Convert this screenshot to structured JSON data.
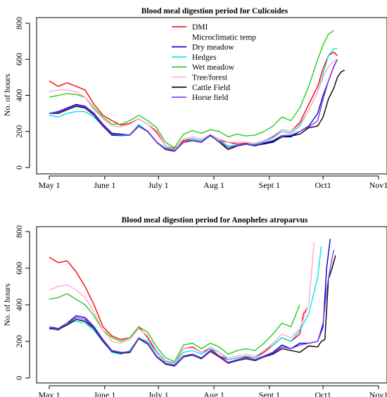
{
  "chart_data": [
    {
      "type": "line",
      "title": "Blood meal digestion period for Culicoides",
      "xlabel": "",
      "ylabel": "No. of hours",
      "x_tick_labels": [
        "May 1",
        "June 1",
        "July 1",
        "Aug 1",
        "Sept 1",
        "Oct1",
        "Nov1"
      ],
      "x_tick_days": [
        0,
        31,
        61,
        92,
        123,
        153,
        184
      ],
      "xlim_days": [
        0,
        184
      ],
      "y_ticks": [
        0,
        200,
        400,
        600,
        800
      ],
      "ylim": [
        0,
        800
      ],
      "grid": false,
      "legend_position": "top-center",
      "series": [
        {
          "name": "DMI",
          "color": "#ff0000",
          "x": [
            0,
            5,
            10,
            15,
            20,
            25,
            30,
            35,
            40,
            45,
            50,
            55,
            60,
            65,
            70,
            75,
            80,
            85,
            90,
            95,
            100,
            105,
            110,
            115,
            120,
            125,
            130,
            135,
            140,
            145,
            150,
            153,
            156,
            159,
            161
          ],
          "y": [
            480,
            450,
            470,
            450,
            430,
            350,
            290,
            260,
            235,
            245,
            270,
            240,
            200,
            120,
            105,
            150,
            160,
            150,
            175,
            150,
            140,
            130,
            135,
            125,
            150,
            170,
            210,
            200,
            250,
            350,
            450,
            550,
            620,
            640,
            620
          ]
        },
        {
          "name": "Microclimatic temp",
          "color": "#ffffff",
          "x": [],
          "y": []
        },
        {
          "name": "Dry meadow",
          "color": "#0000cc",
          "x": [
            0,
            5,
            10,
            15,
            20,
            25,
            30,
            35,
            40,
            45,
            50,
            55,
            60,
            65,
            70,
            75,
            80,
            85,
            90,
            95,
            100,
            105,
            110,
            115,
            120,
            125,
            130,
            135,
            140,
            145,
            150,
            153,
            156,
            159,
            161
          ],
          "y": [
            300,
            310,
            330,
            350,
            340,
            300,
            240,
            190,
            185,
            180,
            230,
            200,
            140,
            105,
            95,
            140,
            150,
            140,
            180,
            145,
            110,
            120,
            130,
            125,
            130,
            140,
            170,
            170,
            200,
            230,
            300,
            400,
            480,
            560,
            600
          ]
        },
        {
          "name": "Hedges",
          "color": "#00e5ee",
          "x": [
            0,
            5,
            10,
            15,
            20,
            25,
            30,
            35,
            40,
            45,
            50,
            55,
            60,
            65,
            70,
            75,
            80,
            85,
            90,
            95,
            100,
            105,
            110,
            115,
            120,
            125,
            130,
            135,
            140,
            145,
            150,
            153,
            156,
            159,
            161
          ],
          "y": [
            290,
            280,
            300,
            310,
            310,
            280,
            230,
            180,
            175,
            180,
            240,
            200,
            140,
            110,
            100,
            140,
            160,
            150,
            175,
            150,
            120,
            125,
            130,
            130,
            145,
            165,
            200,
            190,
            230,
            320,
            420,
            520,
            620,
            660,
            660
          ]
        },
        {
          "name": "Wet meadow",
          "color": "#22cc22",
          "x": [
            0,
            5,
            10,
            15,
            20,
            25,
            30,
            35,
            40,
            45,
            50,
            55,
            60,
            65,
            70,
            75,
            80,
            85,
            90,
            95,
            100,
            105,
            110,
            115,
            120,
            125,
            130,
            135,
            140,
            145,
            150,
            153,
            156,
            159
          ],
          "y": [
            390,
            400,
            410,
            405,
            390,
            330,
            280,
            240,
            240,
            260,
            290,
            260,
            220,
            140,
            110,
            185,
            205,
            190,
            210,
            200,
            170,
            185,
            175,
            180,
            200,
            230,
            280,
            260,
            330,
            450,
            600,
            680,
            740,
            760
          ]
        },
        {
          "name": "Tree/forest",
          "color": "#ffaacc",
          "x": [
            0,
            5,
            10,
            15,
            20,
            25,
            30,
            35,
            40,
            45,
            50,
            55,
            60,
            65,
            70,
            75,
            80,
            85,
            90,
            95,
            100,
            105,
            110,
            115,
            120,
            125,
            130,
            135,
            140,
            145,
            150,
            153,
            156,
            159,
            161
          ],
          "y": [
            420,
            430,
            430,
            420,
            390,
            320,
            270,
            230,
            225,
            240,
            270,
            240,
            190,
            120,
            100,
            160,
            170,
            160,
            180,
            160,
            140,
            140,
            140,
            135,
            150,
            175,
            210,
            200,
            240,
            320,
            420,
            500,
            560,
            590,
            600
          ]
        },
        {
          "name": "Cattle Field",
          "color": "#000000",
          "x": [
            0,
            5,
            10,
            15,
            20,
            25,
            30,
            35,
            40,
            45,
            50,
            55,
            60,
            65,
            70,
            75,
            80,
            85,
            90,
            95,
            100,
            105,
            110,
            115,
            120,
            125,
            130,
            135,
            140,
            145,
            150,
            153,
            156,
            159,
            161,
            163,
            165
          ],
          "y": [
            300,
            300,
            320,
            340,
            330,
            290,
            230,
            180,
            180,
            180,
            230,
            200,
            140,
            100,
            90,
            140,
            150,
            140,
            180,
            140,
            100,
            120,
            130,
            120,
            135,
            145,
            170,
            175,
            185,
            220,
            230,
            280,
            380,
            440,
            500,
            530,
            540
          ]
        },
        {
          "name": "Horse field",
          "color": "#8833ee",
          "x": [
            0,
            5,
            10,
            15,
            20,
            25,
            30,
            35,
            40,
            45,
            50,
            55,
            60,
            65,
            70,
            75,
            80,
            85,
            90,
            95,
            100,
            105,
            110,
            115,
            120,
            125,
            130,
            135,
            140,
            145,
            150,
            153,
            156,
            159,
            161
          ],
          "y": [
            300,
            305,
            325,
            345,
            335,
            295,
            235,
            185,
            180,
            182,
            232,
            202,
            142,
            102,
            92,
            142,
            152,
            142,
            182,
            142,
            110,
            122,
            132,
            122,
            138,
            150,
            178,
            180,
            200,
            225,
            260,
            380,
            480,
            560,
            600
          ]
        }
      ]
    },
    {
      "type": "line",
      "title": "Blood meal digestion period for Anopheles atroparvus",
      "xlabel": "",
      "ylabel": "No. of hours",
      "x_tick_labels": [
        "May 1",
        "June 1",
        "July 1",
        "Aug 1",
        "Sept 1",
        "Oct1",
        "Nov1"
      ],
      "x_tick_days": [
        0,
        31,
        61,
        92,
        123,
        153,
        184
      ],
      "xlim_days": [
        0,
        184
      ],
      "y_ticks": [
        0,
        200,
        400,
        600,
        800
      ],
      "ylim": [
        0,
        800
      ],
      "grid": false,
      "legend_position": "none",
      "series": [
        {
          "name": "DMI",
          "color": "#ff0000",
          "x": [
            0,
            5,
            10,
            15,
            20,
            25,
            30,
            35,
            40,
            45,
            50,
            55,
            60,
            65,
            70,
            75,
            80,
            85,
            90,
            95,
            100,
            105,
            110,
            115,
            120,
            125,
            130,
            135,
            140,
            142,
            144
          ],
          "y": [
            660,
            630,
            640,
            580,
            500,
            400,
            280,
            230,
            210,
            220,
            280,
            220,
            140,
            90,
            80,
            160,
            170,
            140,
            160,
            120,
            100,
            110,
            115,
            110,
            140,
            180,
            220,
            200,
            240,
            350,
            380
          ]
        },
        {
          "name": "Dry meadow",
          "color": "#0000cc",
          "x": [
            0,
            5,
            10,
            15,
            20,
            25,
            30,
            35,
            40,
            45,
            50,
            55,
            60,
            65,
            70,
            75,
            80,
            85,
            90,
            95,
            100,
            105,
            110,
            115,
            120,
            125,
            130,
            135,
            140,
            145,
            150,
            153,
            155,
            157
          ],
          "y": [
            280,
            270,
            300,
            340,
            330,
            280,
            210,
            150,
            140,
            140,
            220,
            190,
            120,
            80,
            70,
            120,
            130,
            110,
            150,
            120,
            85,
            100,
            110,
            100,
            120,
            140,
            180,
            160,
            190,
            190,
            200,
            280,
            600,
            760
          ]
        },
        {
          "name": "Hedges",
          "color": "#00e5ee",
          "x": [
            0,
            5,
            10,
            15,
            20,
            25,
            30,
            35,
            40,
            45,
            50,
            55,
            60,
            65,
            70,
            75,
            80,
            85,
            90,
            95,
            100,
            105,
            110,
            115,
            120,
            125,
            130,
            135,
            140,
            145,
            150,
            152
          ],
          "y": [
            280,
            260,
            300,
            310,
            300,
            260,
            200,
            140,
            130,
            150,
            220,
            200,
            140,
            90,
            80,
            140,
            150,
            130,
            160,
            140,
            100,
            110,
            120,
            110,
            150,
            180,
            220,
            200,
            260,
            350,
            550,
            720
          ]
        },
        {
          "name": "Wet meadow",
          "color": "#22cc22",
          "x": [
            0,
            5,
            10,
            15,
            20,
            25,
            30,
            35,
            40,
            45,
            50,
            55,
            60,
            65,
            70,
            75,
            80,
            85,
            90,
            95,
            100,
            105,
            110,
            115,
            120,
            125,
            130,
            135,
            140
          ],
          "y": [
            430,
            440,
            460,
            430,
            400,
            340,
            260,
            220,
            200,
            220,
            280,
            250,
            170,
            110,
            90,
            180,
            190,
            160,
            190,
            170,
            130,
            150,
            160,
            150,
            190,
            240,
            300,
            280,
            400
          ]
        },
        {
          "name": "Tree/forest",
          "color": "#ffaacc",
          "x": [
            0,
            5,
            10,
            15,
            20,
            25,
            30,
            35,
            40,
            45,
            50,
            55,
            60,
            65,
            70,
            75,
            80,
            85,
            90,
            95,
            100,
            105,
            110,
            115,
            120,
            125,
            130,
            135,
            140,
            145,
            148
          ],
          "y": [
            480,
            500,
            510,
            480,
            440,
            360,
            260,
            200,
            190,
            210,
            270,
            230,
            150,
            95,
            85,
            160,
            165,
            140,
            170,
            140,
            110,
            120,
            130,
            120,
            150,
            190,
            240,
            220,
            270,
            400,
            740
          ]
        },
        {
          "name": "Cattle Field",
          "color": "#000000",
          "x": [
            0,
            5,
            10,
            15,
            20,
            25,
            30,
            35,
            40,
            45,
            50,
            55,
            60,
            65,
            70,
            75,
            80,
            85,
            90,
            95,
            100,
            105,
            110,
            115,
            120,
            125,
            130,
            135,
            140,
            145,
            150,
            152,
            154,
            156,
            158,
            160
          ],
          "y": [
            270,
            265,
            290,
            320,
            310,
            270,
            200,
            145,
            135,
            140,
            215,
            185,
            115,
            75,
            65,
            115,
            125,
            105,
            145,
            115,
            80,
            95,
            105,
            95,
            115,
            130,
            160,
            150,
            140,
            175,
            170,
            200,
            210,
            540,
            600,
            670
          ]
        },
        {
          "name": "Horse field",
          "color": "#8833ee",
          "x": [
            0,
            5,
            10,
            15,
            20,
            25,
            30,
            35,
            40,
            45,
            50,
            55,
            60,
            65,
            70,
            75,
            80,
            85,
            90,
            95,
            100,
            105,
            110,
            115,
            120,
            125,
            130,
            135,
            140,
            145,
            150,
            153,
            155,
            157,
            159
          ],
          "y": [
            275,
            268,
            295,
            330,
            320,
            275,
            205,
            148,
            138,
            145,
            218,
            188,
            118,
            78,
            68,
            118,
            128,
            108,
            148,
            118,
            82,
            98,
            108,
            98,
            118,
            135,
            170,
            160,
            180,
            190,
            200,
            300,
            480,
            600,
            700
          ]
        }
      ]
    }
  ]
}
